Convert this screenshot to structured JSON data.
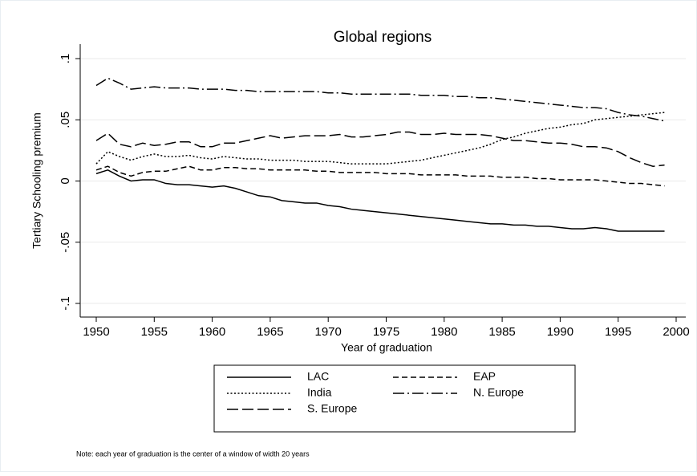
{
  "chart_data": {
    "type": "line",
    "title": "Global regions",
    "y_label": "Tertiary Schooling premium",
    "x_label": "Year of graduation",
    "note": "Note: each year of graduation is the center of a window of width 20 years",
    "x": [
      1950,
      1951,
      1952,
      1953,
      1954,
      1955,
      1956,
      1957,
      1958,
      1959,
      1960,
      1961,
      1962,
      1963,
      1964,
      1965,
      1966,
      1967,
      1968,
      1969,
      1970,
      1971,
      1972,
      1973,
      1974,
      1975,
      1976,
      1977,
      1978,
      1979,
      1980,
      1981,
      1982,
      1983,
      1984,
      1985,
      1986,
      1987,
      1988,
      1989,
      1990,
      1991,
      1992,
      1993,
      1994,
      1995,
      1996,
      1997,
      1998,
      1999
    ],
    "xlim": [
      1950,
      2000
    ],
    "xticks": [
      1950,
      1955,
      1960,
      1965,
      1970,
      1975,
      1980,
      1985,
      1990,
      1995,
      2000
    ],
    "ylim": [
      -0.1,
      0.1
    ],
    "yticks": [
      {
        "value": -0.1,
        "label": "-.1"
      },
      {
        "value": -0.05,
        "label": "-.05"
      },
      0,
      {
        "value": 0.05,
        "label": ".05"
      },
      {
        "value": 0.1,
        "label": ".1"
      }
    ],
    "grid": true,
    "series": [
      {
        "name": "LAC",
        "color": "#000000",
        "linestyle": "solid",
        "values": [
          0.006,
          0.009,
          0.004,
          0.0,
          0.001,
          0.001,
          -0.002,
          -0.003,
          -0.003,
          -0.004,
          -0.005,
          -0.004,
          -0.006,
          -0.009,
          -0.012,
          -0.013,
          -0.016,
          -0.017,
          -0.018,
          -0.018,
          -0.02,
          -0.021,
          -0.023,
          -0.024,
          -0.025,
          -0.026,
          -0.027,
          -0.028,
          -0.029,
          -0.03,
          -0.031,
          -0.032,
          -0.033,
          -0.034,
          -0.035,
          -0.035,
          -0.036,
          -0.036,
          -0.037,
          -0.037,
          -0.038,
          -0.039,
          -0.039,
          -0.038,
          -0.039,
          -0.041,
          -0.041,
          -0.041,
          -0.041,
          -0.041
        ]
      },
      {
        "name": "EAP",
        "color": "#000000",
        "linestyle": "dashed",
        "values": [
          0.009,
          0.012,
          0.007,
          0.004,
          0.007,
          0.008,
          0.008,
          0.01,
          0.012,
          0.009,
          0.009,
          0.011,
          0.011,
          0.01,
          0.01,
          0.009,
          0.009,
          0.009,
          0.009,
          0.008,
          0.008,
          0.007,
          0.007,
          0.007,
          0.007,
          0.006,
          0.006,
          0.006,
          0.005,
          0.005,
          0.005,
          0.005,
          0.004,
          0.004,
          0.004,
          0.003,
          0.003,
          0.003,
          0.002,
          0.002,
          0.001,
          0.001,
          0.001,
          0.001,
          0.0,
          -0.001,
          -0.002,
          -0.002,
          -0.003,
          -0.004
        ]
      },
      {
        "name": "India",
        "color": "#000000",
        "linestyle": "dotted",
        "values": [
          0.014,
          0.024,
          0.02,
          0.017,
          0.02,
          0.022,
          0.02,
          0.02,
          0.021,
          0.019,
          0.018,
          0.02,
          0.019,
          0.018,
          0.018,
          0.017,
          0.017,
          0.017,
          0.016,
          0.016,
          0.016,
          0.015,
          0.014,
          0.014,
          0.014,
          0.014,
          0.015,
          0.016,
          0.017,
          0.019,
          0.021,
          0.023,
          0.025,
          0.027,
          0.03,
          0.034,
          0.036,
          0.039,
          0.041,
          0.043,
          0.044,
          0.046,
          0.047,
          0.05,
          0.051,
          0.052,
          0.053,
          0.054,
          0.055,
          0.056
        ]
      },
      {
        "name": "N. Europe",
        "color": "#000000",
        "linestyle": "longdash-dot",
        "values": [
          0.078,
          0.084,
          0.08,
          0.075,
          0.076,
          0.077,
          0.076,
          0.076,
          0.076,
          0.075,
          0.075,
          0.075,
          0.074,
          0.074,
          0.073,
          0.073,
          0.073,
          0.073,
          0.073,
          0.073,
          0.072,
          0.072,
          0.071,
          0.071,
          0.071,
          0.071,
          0.071,
          0.071,
          0.07,
          0.07,
          0.07,
          0.069,
          0.069,
          0.068,
          0.068,
          0.067,
          0.066,
          0.065,
          0.064,
          0.063,
          0.062,
          0.061,
          0.06,
          0.06,
          0.059,
          0.056,
          0.054,
          0.053,
          0.051,
          0.049
        ]
      },
      {
        "name": "S. Europe",
        "color": "#000000",
        "linestyle": "longdash",
        "values": [
          0.033,
          0.039,
          0.03,
          0.028,
          0.031,
          0.029,
          0.03,
          0.032,
          0.032,
          0.028,
          0.028,
          0.031,
          0.031,
          0.033,
          0.035,
          0.037,
          0.035,
          0.036,
          0.037,
          0.037,
          0.037,
          0.038,
          0.036,
          0.036,
          0.037,
          0.038,
          0.04,
          0.04,
          0.038,
          0.038,
          0.039,
          0.038,
          0.038,
          0.038,
          0.037,
          0.035,
          0.033,
          0.033,
          0.032,
          0.031,
          0.031,
          0.03,
          0.028,
          0.028,
          0.027,
          0.024,
          0.019,
          0.015,
          0.012,
          0.013
        ]
      }
    ]
  }
}
